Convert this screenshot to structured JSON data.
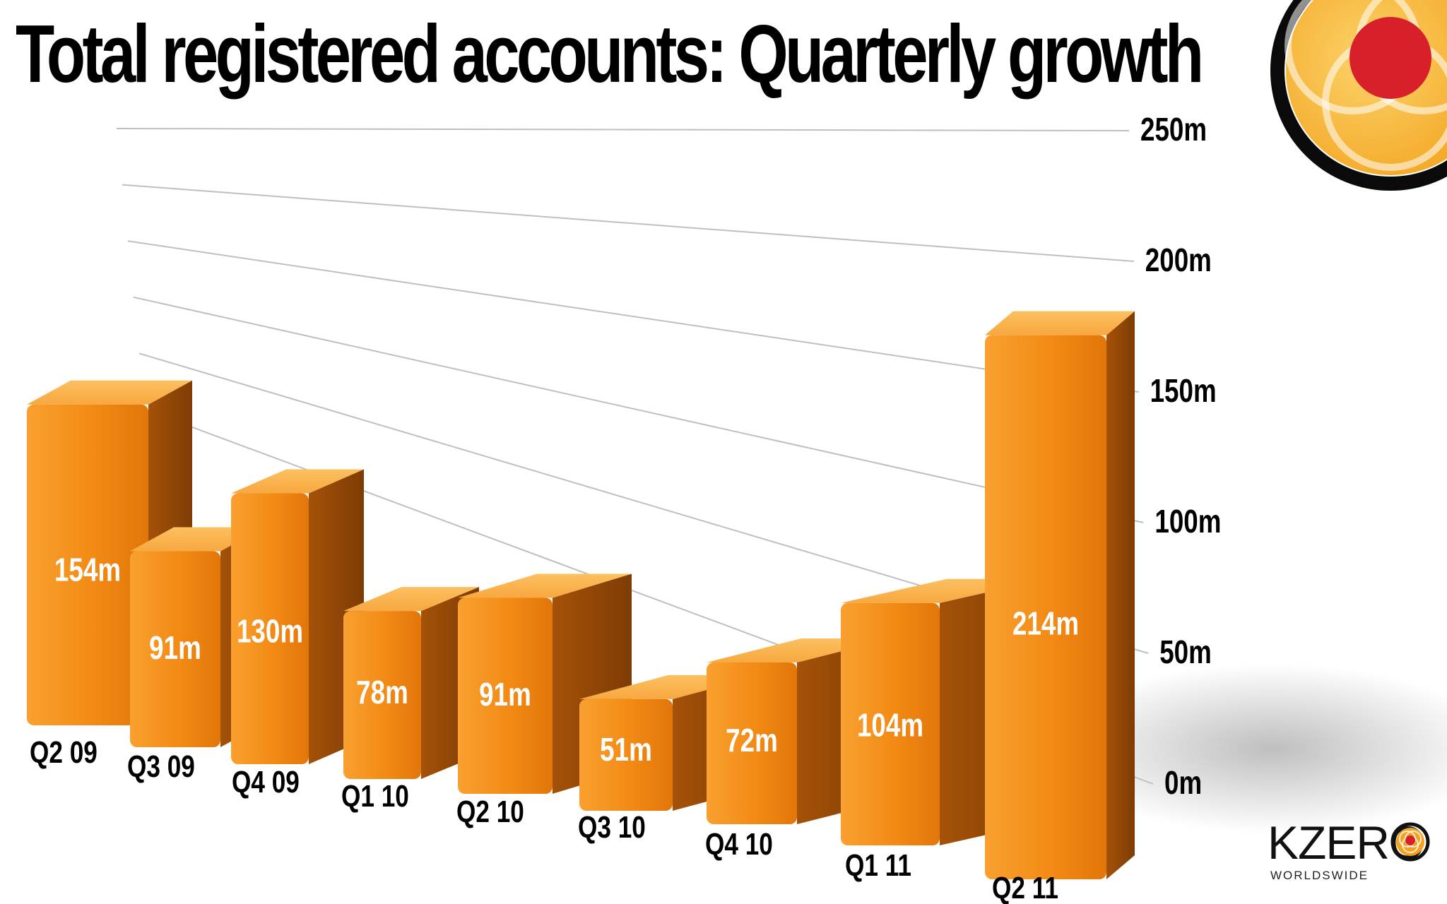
{
  "chart_data": {
    "type": "bar",
    "title": "Total registered accounts: Quarterly growth",
    "categories": [
      "Q2 09",
      "Q3 09",
      "Q4 09",
      "Q1 10",
      "Q2 10",
      "Q3 10",
      "Q4 10",
      "Q1 11",
      "Q2 11"
    ],
    "series": [
      {
        "values": [
          154,
          91,
          130,
          78,
          91,
          51,
          72,
          104,
          214
        ],
        "labels": [
          "154m",
          "91m",
          "130m",
          "78m",
          "91m",
          "51m",
          "72m",
          "104m",
          "214m"
        ]
      }
    ],
    "y_ticks": [
      0,
      50,
      100,
      150,
      200,
      250
    ],
    "y_tick_labels": [
      "0m",
      "50m",
      "100m",
      "150m",
      "200m",
      "250m"
    ],
    "ylim": [
      0,
      250
    ],
    "grid": true,
    "axis_side": "right",
    "style": "3d",
    "colors": {
      "bar_front": "#f7901e",
      "bar_top": "#f9b04a",
      "bar_side": "#9a4a06",
      "grid": "#bfbfbf",
      "text": "#000000",
      "data_label": "#ffffff"
    }
  },
  "brand": {
    "name": "KZERO",
    "tagline": "WORLDSWIDE"
  }
}
